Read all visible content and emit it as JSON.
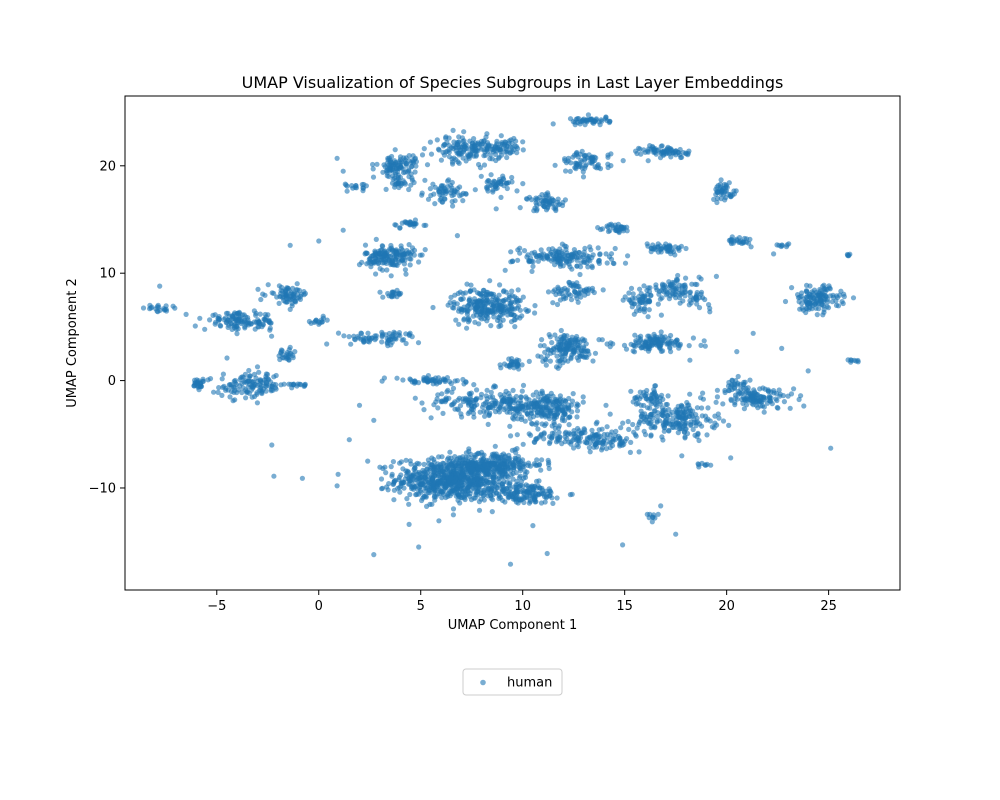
{
  "chart_data": {
    "type": "scatter",
    "title": "UMAP Visualization of Species Subgroups in Last Layer Embeddings",
    "xlabel": "UMAP Component 1",
    "ylabel": "UMAP Component 2",
    "xlim": [
      -9.5,
      28.5
    ],
    "ylim": [
      -19.5,
      26.5
    ],
    "xticks": [
      -5,
      0,
      5,
      10,
      15,
      20,
      25
    ],
    "yticks": [
      -10,
      0,
      10,
      20
    ],
    "grid": false,
    "legend_position": "bottom-center",
    "colors": {
      "series": "#1f77b4"
    },
    "series": [
      {
        "name": "human",
        "color": "#1f77b4",
        "clusters": [
          {
            "cx": 6.6,
            "cy": -9.2,
            "sx": 1.4,
            "sy": 1.0,
            "n": 700
          },
          {
            "cx": 8.6,
            "cy": -7.8,
            "sx": 1.2,
            "sy": 0.6,
            "n": 220
          },
          {
            "cx": 9.9,
            "cy": -10.5,
            "sx": 1.1,
            "sy": 0.5,
            "n": 160
          },
          {
            "cx": 11.2,
            "cy": -2.6,
            "sx": 0.9,
            "sy": 0.7,
            "n": 200
          },
          {
            "cx": 8.3,
            "cy": -2.0,
            "sx": 1.6,
            "sy": 0.6,
            "n": 180
          },
          {
            "cx": 12.8,
            "cy": -5.2,
            "sx": 1.4,
            "sy": 0.5,
            "n": 120
          },
          {
            "cx": 8.3,
            "cy": 7.0,
            "sx": 0.9,
            "sy": 0.8,
            "n": 260
          },
          {
            "cx": 3.5,
            "cy": 11.5,
            "sx": 0.6,
            "sy": 0.6,
            "n": 160
          },
          {
            "cx": 12.2,
            "cy": 3.0,
            "sx": 0.7,
            "sy": 0.7,
            "n": 150
          },
          {
            "cx": 17.5,
            "cy": -3.5,
            "sx": 1.0,
            "sy": 0.8,
            "n": 200
          },
          {
            "cx": 21.5,
            "cy": -1.7,
            "sx": 0.9,
            "sy": 0.5,
            "n": 120
          },
          {
            "cx": 24.4,
            "cy": 7.6,
            "sx": 0.6,
            "sy": 0.6,
            "n": 130
          },
          {
            "cx": 16.5,
            "cy": 3.5,
            "sx": 1.0,
            "sy": 0.4,
            "n": 120
          },
          {
            "cx": 17.5,
            "cy": 8.5,
            "sx": 0.6,
            "sy": 0.5,
            "n": 70
          },
          {
            "cx": 15.8,
            "cy": 7.5,
            "sx": 0.4,
            "sy": 0.5,
            "n": 60
          },
          {
            "cx": -3.8,
            "cy": 5.5,
            "sx": 0.9,
            "sy": 0.4,
            "n": 120
          },
          {
            "cx": -3.3,
            "cy": -0.5,
            "sx": 0.8,
            "sy": 0.6,
            "n": 120
          },
          {
            "cx": -1.5,
            "cy": 8.0,
            "sx": 0.5,
            "sy": 0.4,
            "n": 70
          },
          {
            "cx": 7.3,
            "cy": 21.5,
            "sx": 0.8,
            "sy": 0.6,
            "n": 150
          },
          {
            "cx": 3.9,
            "cy": 19.9,
            "sx": 0.5,
            "sy": 0.6,
            "n": 100
          },
          {
            "cx": 12.0,
            "cy": 11.5,
            "sx": 1.2,
            "sy": 0.5,
            "n": 160
          },
          {
            "cx": 17.0,
            "cy": 21.3,
            "sx": 0.6,
            "sy": 0.3,
            "n": 70
          },
          {
            "cx": 13.3,
            "cy": 24.2,
            "sx": 0.5,
            "sy": 0.2,
            "n": 45
          },
          {
            "cx": 13.1,
            "cy": 20.3,
            "sx": 0.6,
            "sy": 0.5,
            "n": 70
          },
          {
            "cx": 11.2,
            "cy": 16.6,
            "sx": 0.5,
            "sy": 0.4,
            "n": 60
          },
          {
            "cx": 9.2,
            "cy": 21.7,
            "sx": 0.4,
            "sy": 0.4,
            "n": 45
          },
          {
            "cx": 6.2,
            "cy": 17.5,
            "sx": 0.5,
            "sy": 0.5,
            "n": 60
          },
          {
            "cx": 8.7,
            "cy": 18.2,
            "sx": 0.4,
            "sy": 0.4,
            "n": 45
          },
          {
            "cx": 19.9,
            "cy": 17.6,
            "sx": 0.3,
            "sy": 0.4,
            "n": 45
          },
          {
            "cx": 14.6,
            "cy": 14.2,
            "sx": 0.3,
            "sy": 0.2,
            "n": 35
          },
          {
            "cx": 17.0,
            "cy": 12.3,
            "sx": 0.5,
            "sy": 0.3,
            "n": 45
          },
          {
            "cx": 12.5,
            "cy": 8.2,
            "sx": 0.6,
            "sy": 0.5,
            "n": 60
          },
          {
            "cx": 3.0,
            "cy": 4.0,
            "sx": 1.0,
            "sy": 0.3,
            "n": 70
          },
          {
            "cx": 5.5,
            "cy": 0.0,
            "sx": 0.9,
            "sy": 0.15,
            "n": 55
          },
          {
            "cx": 16.2,
            "cy": -1.5,
            "sx": 0.4,
            "sy": 0.4,
            "n": 45
          },
          {
            "cx": 14.0,
            "cy": -5.8,
            "sx": 0.8,
            "sy": 0.3,
            "n": 45
          },
          {
            "cx": 9.6,
            "cy": 1.6,
            "sx": 0.3,
            "sy": 0.3,
            "n": 30
          },
          {
            "cx": 20.5,
            "cy": -0.4,
            "sx": 0.3,
            "sy": 0.3,
            "n": 30
          },
          {
            "cx": 18.6,
            "cy": 7.5,
            "sx": 0.3,
            "sy": 0.4,
            "n": 25
          },
          {
            "cx": 20.6,
            "cy": 13.0,
            "sx": 0.3,
            "sy": 0.2,
            "n": 25
          },
          {
            "cx": -5.9,
            "cy": -0.3,
            "sx": 0.2,
            "sy": 0.2,
            "n": 25
          },
          {
            "cx": -7.8,
            "cy": 6.7,
            "sx": 0.3,
            "sy": 0.2,
            "n": 20
          },
          {
            "cx": -1.6,
            "cy": 2.4,
            "sx": 0.2,
            "sy": 0.3,
            "n": 25
          },
          {
            "cx": -1.2,
            "cy": -0.4,
            "sx": 0.3,
            "sy": 0.1,
            "n": 15
          },
          {
            "cx": 4.4,
            "cy": 14.6,
            "sx": 0.4,
            "sy": 0.2,
            "n": 25
          },
          {
            "cx": 0.0,
            "cy": 5.5,
            "sx": 0.3,
            "sy": 0.15,
            "n": 15
          },
          {
            "cx": 3.6,
            "cy": 8.0,
            "sx": 0.3,
            "sy": 0.2,
            "n": 20
          },
          {
            "cx": 2.0,
            "cy": 18.0,
            "sx": 0.3,
            "sy": 0.2,
            "n": 15
          },
          {
            "cx": 4.0,
            "cy": 18.5,
            "sx": 0.4,
            "sy": 0.3,
            "n": 20
          },
          {
            "cx": 22.7,
            "cy": 12.6,
            "sx": 0.2,
            "sy": 0.1,
            "n": 8
          },
          {
            "cx": 26.3,
            "cy": 1.8,
            "sx": 0.2,
            "sy": 0.1,
            "n": 8
          },
          {
            "cx": 26.0,
            "cy": 11.6,
            "sx": 0.05,
            "sy": 0.1,
            "n": 5
          },
          {
            "cx": 18.8,
            "cy": -7.8,
            "sx": 0.2,
            "sy": 0.1,
            "n": 8
          },
          {
            "cx": 16.5,
            "cy": -12.5,
            "sx": 0.2,
            "sy": 0.3,
            "n": 10
          }
        ],
        "points": [
          [
            -7.8,
            8.8
          ],
          [
            0.9,
            20.7
          ],
          [
            1.2,
            19.5
          ],
          [
            1.3,
            18.3
          ],
          [
            14.9,
            -15.3
          ],
          [
            9.4,
            -17.1
          ],
          [
            2.7,
            -16.2
          ],
          [
            4.9,
            -15.5
          ],
          [
            11.2,
            -16.1
          ],
          [
            17.5,
            -14.3
          ],
          [
            25.1,
            -6.3
          ],
          [
            24.0,
            0.9
          ],
          [
            20.2,
            -7.2
          ],
          [
            0.9,
            -9.8
          ],
          [
            -2.3,
            -6.0
          ],
          [
            -2.2,
            -8.9
          ],
          [
            -0.8,
            -9.1
          ],
          [
            2.4,
            -7.5
          ],
          [
            6.6,
            -12.5
          ],
          [
            2.0,
            10.8
          ],
          [
            1.2,
            14.0
          ],
          [
            -1.4,
            12.6
          ],
          [
            0.0,
            13.0
          ],
          [
            21.3,
            4.4
          ],
          [
            20.5,
            2.7
          ],
          [
            22.7,
            3.0
          ],
          [
            18.2,
            1.9
          ],
          [
            15.3,
            -1.0
          ],
          [
            19.3,
            -4.3
          ],
          [
            2.0,
            -2.3
          ],
          [
            2.7,
            -3.7
          ],
          [
            1.5,
            -5.5
          ],
          [
            -4.5,
            2.1
          ],
          [
            6.8,
            13.5
          ],
          [
            8.7,
            16.0
          ],
          [
            19.5,
            9.7
          ],
          [
            22.3,
            11.8
          ],
          [
            16.8,
            6.1
          ],
          [
            17.8,
            -7.0
          ],
          [
            10.5,
            -13.5
          ]
        ]
      }
    ]
  }
}
